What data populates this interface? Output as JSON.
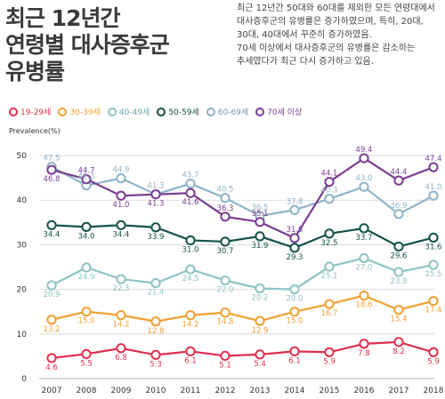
{
  "title_lines": [
    "최근 12년간",
    "연령별 대사증후군",
    "유병률"
  ],
  "description": [
    "최근 12년간 50대와 60대를 제외한 모든 연령대에서",
    "대사증후군의 유병률은 증가하였으며, 특히, 20대,",
    "30대, 40대에서 꾸준히 증가하였음.",
    "70세 이상에서 대사증후군의 유병률은 감소하는",
    "추세였다가 최근 다시 증가하고 있음."
  ],
  "chart_data": {
    "type": "line",
    "ylabel": "Prevalence(%)",
    "xlabel": "",
    "ylim": [
      0,
      53
    ],
    "yticks": [
      0,
      10,
      20,
      30,
      40,
      50
    ],
    "grid": true,
    "legend_position": "top",
    "x": [
      "2007",
      "2008",
      "2009",
      "2010",
      "2011",
      "2012",
      "2013",
      "2014",
      "2015",
      "2016",
      "2017",
      "2018"
    ],
    "series": [
      {
        "name": "19-29세",
        "color": "#e0304e",
        "label_pos": "below",
        "values": [
          4.6,
          5.5,
          6.8,
          5.3,
          6.1,
          5.1,
          5.4,
          6.1,
          5.9,
          7.8,
          8.2,
          5.9
        ]
      },
      {
        "name": "30-39세",
        "color": "#f0a030",
        "label_pos": "below",
        "values": [
          13.2,
          15.0,
          14.2,
          12.8,
          14.2,
          14.8,
          12.9,
          15.0,
          16.7,
          18.6,
          15.4,
          17.4
        ]
      },
      {
        "name": "40-49세",
        "color": "#8ec3c5",
        "label_pos": "below",
        "values": [
          20.9,
          24.9,
          22.3,
          21.4,
          24.5,
          22.0,
          20.2,
          20.0,
          25.1,
          27.0,
          23.9,
          25.5
        ]
      },
      {
        "name": "50-59세",
        "color": "#14524a",
        "label_pos": "below",
        "values": [
          34.4,
          34.0,
          34.4,
          33.9,
          31.0,
          30.7,
          31.9,
          29.3,
          32.5,
          33.7,
          29.6,
          31.6
        ]
      },
      {
        "name": "60-69세",
        "color": "#8fb3c8",
        "label_pos": "above",
        "values": [
          47.5,
          43.3,
          44.9,
          41.3,
          43.7,
          40.5,
          36.5,
          37.8,
          40.3,
          43.0,
          36.9,
          41.0
        ]
      },
      {
        "name": "70세 이상",
        "color": "#7a3d92",
        "label_pos": "mixed",
        "values": [
          46.8,
          44.7,
          41.0,
          41.3,
          41.6,
          36.3,
          35.1,
          31.5,
          44.1,
          49.4,
          44.4,
          47.4
        ]
      }
    ]
  }
}
